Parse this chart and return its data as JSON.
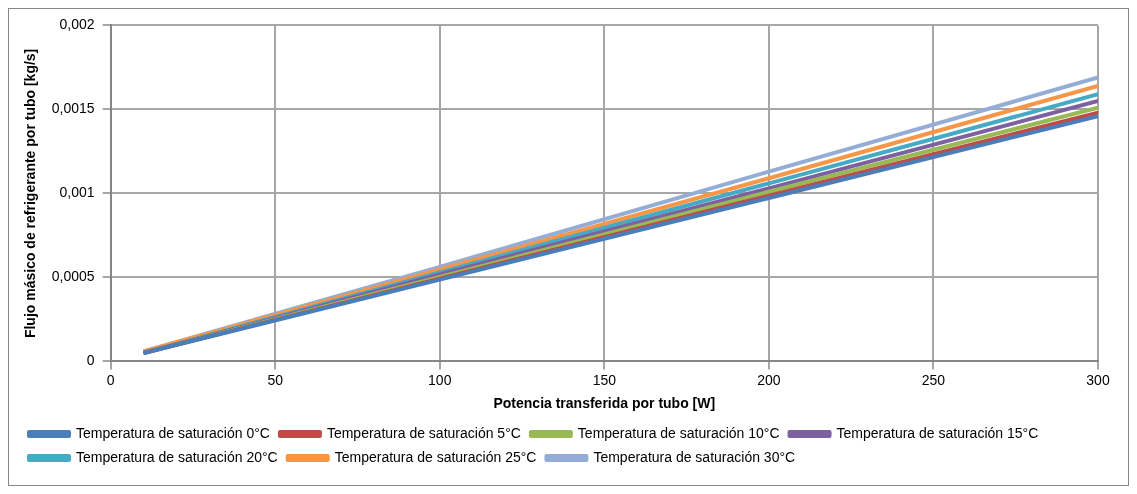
{
  "chart_data": {
    "type": "line",
    "xlabel": "Potencia transferida por tubo [W]",
    "ylabel": "Flujo másico de refrigerante por tubo [kg/s]",
    "x": [
      10,
      100,
      200,
      300
    ],
    "series": [
      {
        "name": "Temperatura de saturación 0°C",
        "color": "#4a7ebb",
        "values": [
          5e-05,
          0.000487,
          0.000973,
          0.00146
        ]
      },
      {
        "name": "Temperatura de saturación 5°C",
        "color": "#be4b48",
        "values": [
          5e-05,
          0.000493,
          0.000987,
          0.00148
        ]
      },
      {
        "name": "Temperatura de saturación 10°C",
        "color": "#98b954",
        "values": [
          5e-05,
          0.000503,
          0.00101,
          0.00151
        ]
      },
      {
        "name": "Temperatura de saturación 15°C",
        "color": "#7d60a0",
        "values": [
          5e-05,
          0.000517,
          0.00103,
          0.00155
        ]
      },
      {
        "name": "Temperatura de saturación 20°C",
        "color": "#46aac5",
        "values": [
          5e-05,
          0.00053,
          0.00106,
          0.00159
        ]
      },
      {
        "name": "Temperatura de saturación 25°C",
        "color": "#f79646",
        "values": [
          6e-05,
          0.000547,
          0.00109,
          0.00164
        ]
      },
      {
        "name": "Temperatura de saturación 30°C",
        "color": "#94add7",
        "values": [
          6e-05,
          0.000563,
          0.00113,
          0.00169
        ]
      }
    ],
    "xlim": [
      0,
      300
    ],
    "xticks": [
      0,
      50,
      100,
      150,
      200,
      250,
      300
    ],
    "ylim": [
      0,
      0.002
    ],
    "yticks": [
      0,
      {
        "value": 0.0005,
        "label": "0,0005"
      },
      {
        "value": 0.001,
        "label": "0,001"
      },
      {
        "value": 0.0015,
        "label": "0,0015"
      },
      {
        "value": 0.002,
        "label": "0,002"
      }
    ],
    "grid": true,
    "legend": "bottom",
    "marker": "none",
    "line_style": "solid"
  }
}
